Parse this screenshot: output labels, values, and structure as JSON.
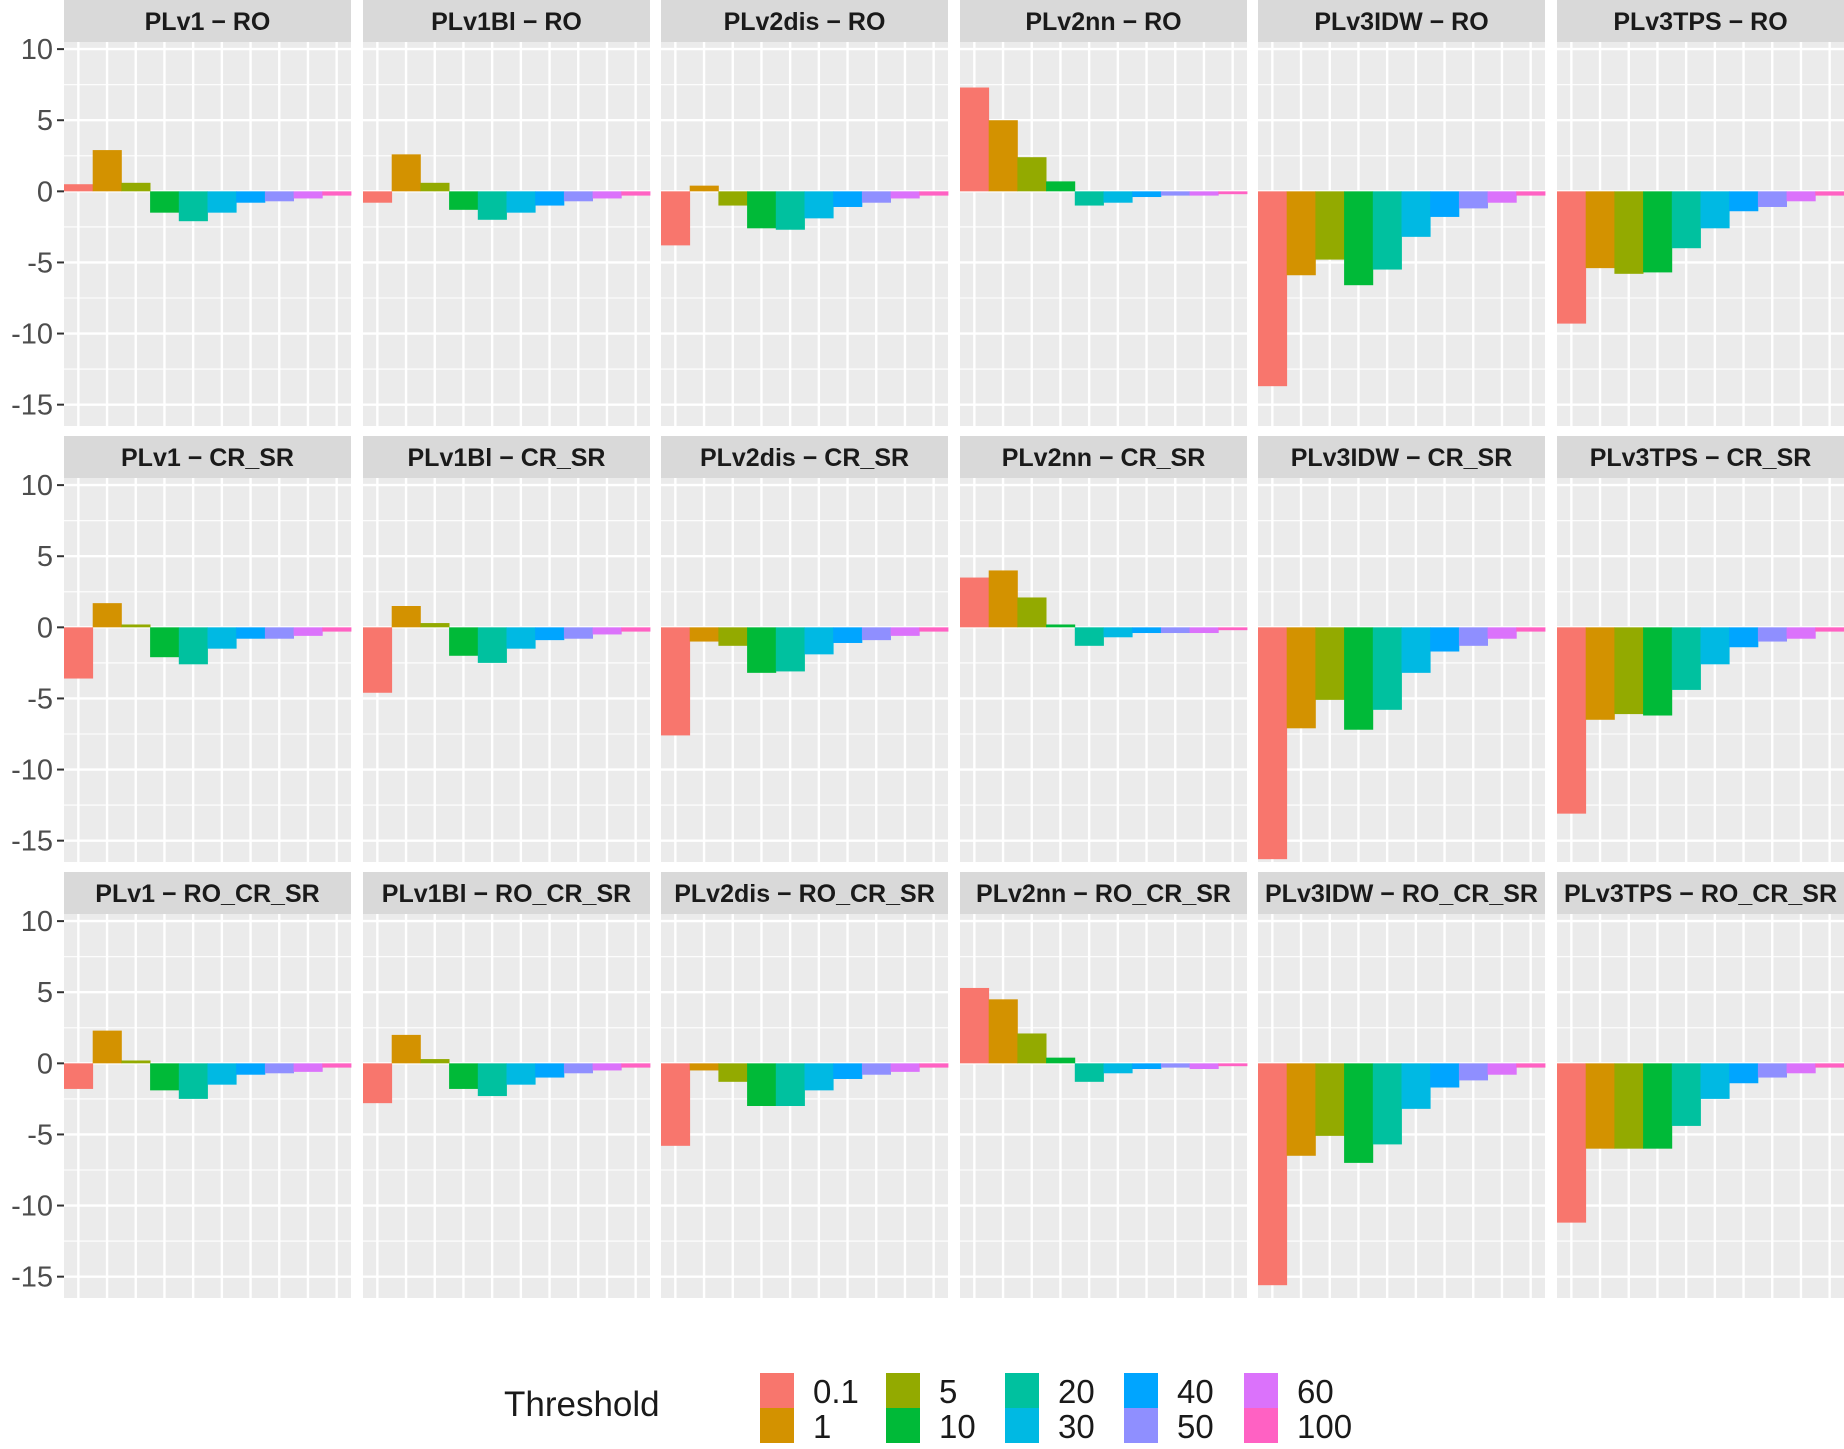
{
  "chart_data": {
    "type": "bar",
    "layout": "facet-grid",
    "facet_rows": [
      "RO",
      "CR_SR",
      "RO_CR_SR"
    ],
    "facet_cols": [
      "PLv1",
      "PLv1Bl",
      "PLv2dis",
      "PLv2nn",
      "PLv3IDW",
      "PLv3TPS"
    ],
    "ylim": [
      -16.5,
      10.5
    ],
    "y_ticks": [
      "10",
      "5",
      "0",
      "-5",
      "-10",
      "-15"
    ],
    "grid": true,
    "legend": {
      "title": "Threshold",
      "position": "bottom",
      "items": [
        {
          "label": "0.1",
          "color": "#F8766D"
        },
        {
          "label": "1",
          "color": "#D39200"
        },
        {
          "label": "5",
          "color": "#93AA00"
        },
        {
          "label": "10",
          "color": "#00BA38"
        },
        {
          "label": "20",
          "color": "#00C19F"
        },
        {
          "label": "30",
          "color": "#00B9E3"
        },
        {
          "label": "40",
          "color": "#00A5FF"
        },
        {
          "label": "50",
          "color": "#8F8FFF"
        },
        {
          "label": "60",
          "color": "#DB72FB"
        },
        {
          "label": "100",
          "color": "#FF61C3"
        }
      ]
    },
    "panels": [
      {
        "title": "PLv1 − RO",
        "values": [
          0.5,
          2.9,
          0.6,
          -1.5,
          -2.1,
          -1.5,
          -0.8,
          -0.7,
          -0.5,
          -0.3
        ]
      },
      {
        "title": "PLv1Bl − RO",
        "values": [
          -0.8,
          2.6,
          0.6,
          -1.3,
          -2.0,
          -1.5,
          -1.0,
          -0.7,
          -0.5,
          -0.3
        ]
      },
      {
        "title": "PLv2dis − RO",
        "values": [
          -3.8,
          0.4,
          -1.0,
          -2.6,
          -2.7,
          -1.9,
          -1.1,
          -0.8,
          -0.5,
          -0.3
        ]
      },
      {
        "title": "PLv2nn − RO",
        "values": [
          7.3,
          5.0,
          2.4,
          0.7,
          -1.0,
          -0.8,
          -0.4,
          -0.3,
          -0.3,
          -0.2
        ]
      },
      {
        "title": "PLv3IDW − RO",
        "values": [
          -13.7,
          -5.9,
          -4.8,
          -6.6,
          -5.5,
          -3.2,
          -1.8,
          -1.2,
          -0.8,
          -0.3
        ]
      },
      {
        "title": "PLv3TPS − RO",
        "values": [
          -9.3,
          -5.4,
          -5.8,
          -5.7,
          -4.0,
          -2.6,
          -1.4,
          -1.1,
          -0.7,
          -0.3
        ]
      },
      {
        "title": "PLv1 − CR_SR",
        "values": [
          -3.6,
          1.7,
          0.2,
          -2.1,
          -2.6,
          -1.5,
          -0.8,
          -0.8,
          -0.6,
          -0.3
        ]
      },
      {
        "title": "PLv1Bl − CR_SR",
        "values": [
          -4.6,
          1.5,
          0.3,
          -2.0,
          -2.5,
          -1.5,
          -0.9,
          -0.8,
          -0.5,
          -0.3
        ]
      },
      {
        "title": "PLv2dis − CR_SR",
        "values": [
          -7.6,
          -1.0,
          -1.3,
          -3.2,
          -3.1,
          -1.9,
          -1.1,
          -0.9,
          -0.6,
          -0.3
        ]
      },
      {
        "title": "PLv2nn − CR_SR",
        "values": [
          3.5,
          4.0,
          2.1,
          0.2,
          -1.3,
          -0.7,
          -0.4,
          -0.4,
          -0.4,
          -0.2
        ]
      },
      {
        "title": "PLv3IDW − CR_SR",
        "values": [
          -16.3,
          -7.1,
          -5.1,
          -7.2,
          -5.8,
          -3.2,
          -1.7,
          -1.3,
          -0.8,
          -0.3
        ]
      },
      {
        "title": "PLv3TPS − CR_SR",
        "values": [
          -13.1,
          -6.5,
          -6.1,
          -6.2,
          -4.4,
          -2.6,
          -1.4,
          -1.0,
          -0.8,
          -0.3
        ]
      },
      {
        "title": "PLv1 − RO_CR_SR",
        "values": [
          -1.8,
          2.3,
          0.2,
          -1.9,
          -2.5,
          -1.5,
          -0.8,
          -0.7,
          -0.6,
          -0.3
        ]
      },
      {
        "title": "PLv1Bl − RO_CR_SR",
        "values": [
          -2.8,
          2.0,
          0.3,
          -1.8,
          -2.3,
          -1.5,
          -1.0,
          -0.7,
          -0.5,
          -0.3
        ]
      },
      {
        "title": "PLv2dis − RO_CR_SR",
        "values": [
          -5.8,
          -0.5,
          -1.3,
          -3.0,
          -3.0,
          -1.9,
          -1.1,
          -0.8,
          -0.6,
          -0.3
        ]
      },
      {
        "title": "PLv2nn − RO_CR_SR",
        "values": [
          5.3,
          4.5,
          2.1,
          0.4,
          -1.3,
          -0.7,
          -0.4,
          -0.3,
          -0.4,
          -0.2
        ]
      },
      {
        "title": "PLv3IDW − RO_CR_SR",
        "values": [
          -15.6,
          -6.5,
          -5.1,
          -7.0,
          -5.7,
          -3.2,
          -1.7,
          -1.2,
          -0.8,
          -0.3
        ]
      },
      {
        "title": "PLv3TPS − RO_CR_SR",
        "values": [
          -11.2,
          -6.0,
          -6.0,
          -6.0,
          -4.4,
          -2.5,
          -1.4,
          -1.0,
          -0.7,
          -0.3
        ]
      }
    ]
  }
}
